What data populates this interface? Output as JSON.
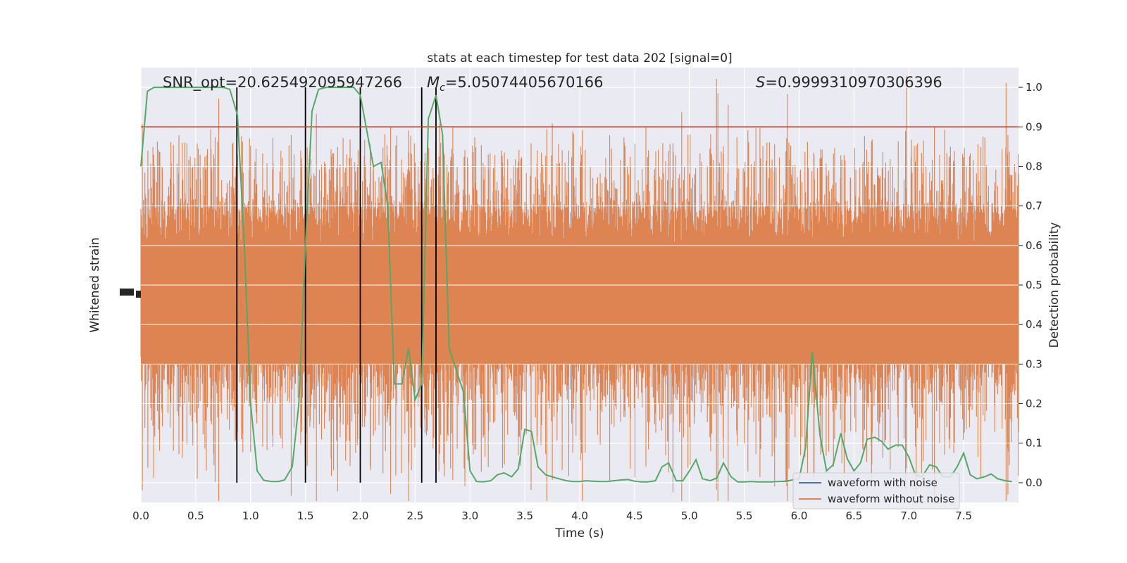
{
  "chart_data": {
    "type": "line",
    "title": "stats at each timestep for test data 202 [signal=0]",
    "xlabel": "Time (s)",
    "ylabel_left": "Whitened strain",
    "ylabel_right": "Detection probability",
    "xlim": [
      0,
      8
    ],
    "ylim_right": [
      -0.05,
      1.05
    ],
    "x_ticks": [
      "0.0",
      "0.5",
      "1.0",
      "1.5",
      "2.0",
      "2.5",
      "3.0",
      "3.5",
      "4.0",
      "4.5",
      "5.0",
      "5.5",
      "6.0",
      "6.5",
      "7.0",
      "7.5"
    ],
    "y_ticks_right": [
      "0.0",
      "0.1",
      "0.2",
      "0.3",
      "0.4",
      "0.5",
      "0.6",
      "0.7",
      "0.8",
      "0.9",
      "1.0"
    ],
    "grid": true,
    "legend_position": "lower-right",
    "annotations": {
      "snr": "SNR_opt=20.625492095947266",
      "mc_symbol": "M",
      "mc_sub": "c",
      "mc_value": "=5.05074405670166",
      "s_symbol": "S",
      "s_value": "=0.9999310970306396"
    },
    "threshold": 0.9,
    "threshold_color": "#b03a2e",
    "vertical_lines": [
      0.875,
      1.5,
      2.0,
      2.56,
      2.69
    ],
    "colors": {
      "background": "#eaeaf2",
      "grid": "#ffffff",
      "noisy": "#4c72b0",
      "clean": "#dd8452",
      "probability": "#55a868",
      "vlines": "#000000"
    },
    "series": [
      {
        "name": "waveform with noise",
        "color": "#4c72b0"
      },
      {
        "name": "waveform without noise",
        "color": "#dd8452"
      }
    ],
    "probability_series": {
      "x": [
        0.0,
        0.06,
        0.12,
        0.19,
        0.25,
        0.31,
        0.38,
        0.44,
        0.5,
        0.56,
        0.62,
        0.69,
        0.75,
        0.81,
        0.88,
        0.94,
        1.0,
        1.06,
        1.12,
        1.19,
        1.25,
        1.31,
        1.38,
        1.44,
        1.5,
        1.56,
        1.62,
        1.69,
        1.75,
        1.81,
        1.88,
        1.94,
        2.0,
        2.06,
        2.12,
        2.19,
        2.25,
        2.31,
        2.38,
        2.44,
        2.5,
        2.56,
        2.62,
        2.69,
        2.75,
        2.81,
        2.88,
        2.94,
        3.0,
        3.06,
        3.12,
        3.19,
        3.25,
        3.31,
        3.38,
        3.44,
        3.5,
        3.56,
        3.62,
        3.69,
        3.75,
        3.81,
        3.88,
        3.94,
        4.0,
        4.06,
        4.12,
        4.19,
        4.25,
        4.31,
        4.38,
        4.44,
        4.5,
        4.56,
        4.62,
        4.69,
        4.75,
        4.81,
        4.88,
        4.94,
        5.0,
        5.06,
        5.12,
        5.19,
        5.25,
        5.31,
        5.38,
        5.44,
        5.5,
        5.56,
        5.62,
        5.69,
        5.75,
        5.81,
        5.88,
        5.94,
        6.0,
        6.06,
        6.12,
        6.19,
        6.25,
        6.31,
        6.38,
        6.44,
        6.5,
        6.56,
        6.62,
        6.69,
        6.75,
        6.81,
        6.88,
        6.94,
        7.0,
        7.06,
        7.12,
        7.19,
        7.25,
        7.31,
        7.38,
        7.44,
        7.5,
        7.56,
        7.62,
        7.69,
        7.75,
        7.81,
        7.88,
        7.94
      ],
      "y": [
        0.8,
        0.99,
        1.0,
        1.0,
        1.0,
        1.0,
        1.0,
        1.0,
        1.0,
        1.0,
        1.0,
        1.0,
        1.0,
        0.995,
        0.93,
        0.62,
        0.2,
        0.03,
        0.006,
        0.003,
        0.003,
        0.007,
        0.04,
        0.2,
        0.6,
        0.94,
        0.995,
        1.0,
        1.0,
        1.0,
        1.0,
        1.0,
        0.98,
        0.89,
        0.8,
        0.81,
        0.7,
        0.25,
        0.25,
        0.34,
        0.21,
        0.25,
        0.92,
        0.98,
        0.88,
        0.34,
        0.28,
        0.23,
        0.03,
        0.003,
        0.002,
        0.005,
        0.02,
        0.025,
        0.015,
        0.035,
        0.135,
        0.13,
        0.04,
        0.02,
        0.015,
        0.01,
        0.005,
        0.003,
        0.003,
        0.005,
        0.004,
        0.003,
        0.003,
        0.005,
        0.007,
        0.008,
        0.004,
        0.002,
        0.002,
        0.005,
        0.04,
        0.05,
        0.005,
        0.005,
        0.03,
        0.058,
        0.01,
        0.005,
        0.012,
        0.05,
        0.015,
        0.002,
        0.002,
        0.003,
        0.002,
        0.002,
        0.002,
        0.003,
        0.004,
        0.007,
        0.01,
        0.09,
        0.33,
        0.12,
        0.03,
        0.045,
        0.125,
        0.06,
        0.03,
        0.05,
        0.11,
        0.115,
        0.105,
        0.085,
        0.095,
        0.095,
        0.065,
        0.02,
        0.015,
        0.045,
        0.04,
        0.015,
        0.015,
        0.04,
        0.075,
        0.02,
        0.01,
        0.015,
        0.022,
        0.01,
        0.005,
        0.003
      ]
    }
  }
}
